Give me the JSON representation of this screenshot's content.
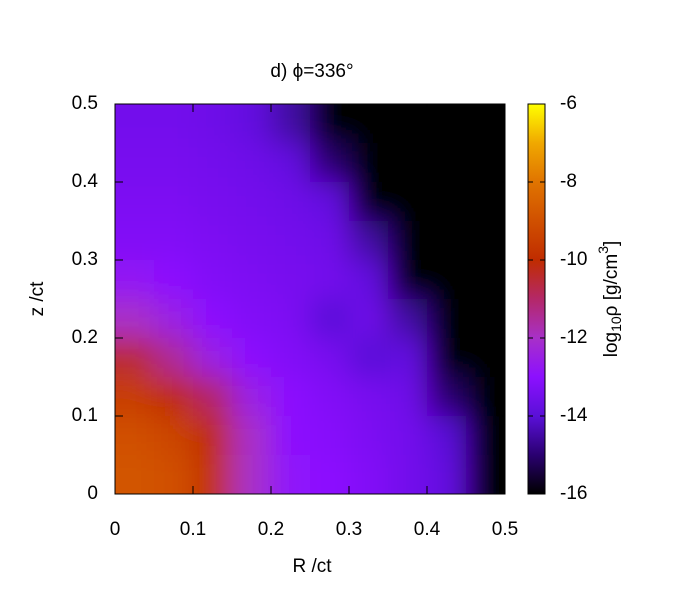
{
  "chart_data": {
    "type": "heatmap",
    "title": "d) ϕ=336°",
    "xlabel": "R /ct",
    "ylabel": "z /ct",
    "colorbar_label": [
      "log",
      "10",
      "ρ [g/cm",
      "3",
      "]"
    ],
    "xlim": [
      0,
      0.5
    ],
    "ylim": [
      0,
      0.5
    ],
    "zlim": [
      -16,
      -6
    ],
    "xticks": [
      0,
      0.1,
      0.2,
      0.3,
      0.4,
      0.5
    ],
    "yticks": [
      0,
      0.1,
      0.2,
      0.3,
      0.4,
      0.5
    ],
    "zticks": [
      -6,
      -8,
      -10,
      -12,
      -14,
      -16
    ],
    "colorscale": [
      {
        "value": -16,
        "color": "#000000"
      },
      {
        "value": -15,
        "color": "#2a0070"
      },
      {
        "value": -14,
        "color": "#5a10d8"
      },
      {
        "value": -13,
        "color": "#8c10ff"
      },
      {
        "value": -12,
        "color": "#a830c8"
      },
      {
        "value": -11,
        "color": "#b42868"
      },
      {
        "value": -10,
        "color": "#c02c00"
      },
      {
        "value": -9,
        "color": "#d05000"
      },
      {
        "value": -8,
        "color": "#e07400"
      },
      {
        "value": -7,
        "color": "#f0a800"
      },
      {
        "value": -6,
        "color": "#ffff00"
      }
    ],
    "z": [
      [
        -13.5,
        -13.5,
        -13.6,
        -13.8,
        -14.5,
        -16,
        -16,
        -16,
        -16,
        -16
      ],
      [
        -13.4,
        -13.4,
        -13.5,
        -13.6,
        -13.8,
        -15,
        -16,
        -16,
        -16,
        -16
      ],
      [
        -13.3,
        -13.3,
        -13.4,
        -13.5,
        -13.6,
        -13.8,
        -16,
        -16,
        -16,
        -16
      ],
      [
        -13.2,
        -13.2,
        -13.3,
        -13.4,
        -13.5,
        -13.6,
        -14.5,
        -16,
        -16,
        -16
      ],
      [
        -12.8,
        -13,
        -13.2,
        -13.3,
        -13.4,
        -13.5,
        -13.8,
        -16,
        -16,
        -16
      ],
      [
        -12,
        -12.5,
        -13,
        -13.2,
        -13.3,
        -14,
        -13.6,
        -14.5,
        -16,
        -16
      ],
      [
        -10.5,
        -11.5,
        -12.5,
        -13,
        -13.2,
        -13.4,
        -14,
        -13.8,
        -16,
        -16
      ],
      [
        -9.5,
        -10,
        -11,
        -12.5,
        -13,
        -13.2,
        -13.4,
        -13.6,
        -15,
        -16
      ],
      [
        -9,
        -9.3,
        -10,
        -12,
        -13,
        -13.1,
        -13.3,
        -13.5,
        -14,
        -16
      ],
      [
        -8.9,
        -9,
        -9.8,
        -12,
        -12.9,
        -13,
        -13.2,
        -13.5,
        -13.8,
        -16
      ]
    ]
  }
}
